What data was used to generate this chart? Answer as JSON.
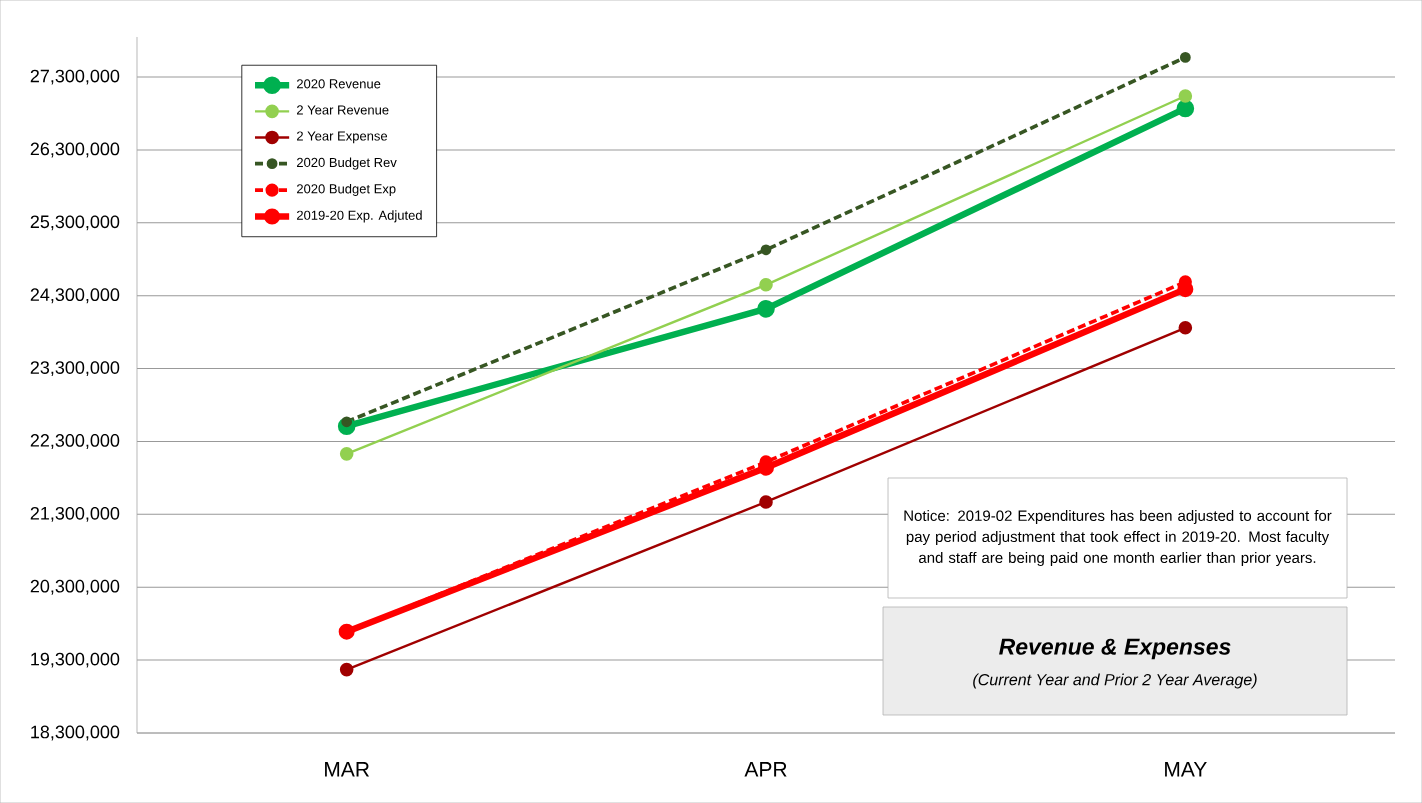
{
  "chart_data": {
    "type": "line",
    "title": "Revenue & Expenses",
    "subtitle": "(Current Year and Prior 2 Year Average)",
    "annotations": [
      "Notice: 2019-02 Expenditures has been adjusted to account for pay period adjustment that took effect in 2019-20.  Most faculty and staff are being paid one month earlier than prior years."
    ],
    "categories": [
      "MAR",
      "APR",
      "MAY"
    ],
    "series": [
      {
        "name": "2020 Revenue",
        "color": "#00b050",
        "values": [
          22510000,
          24120000,
          26870000
        ],
        "line_style": "solid"
      },
      {
        "name": "2 Year Revenue",
        "color": "#92d050",
        "values": [
          22130000,
          24450000,
          27040000
        ],
        "line_style": "solid"
      },
      {
        "name": "2 Year Expense",
        "color": "#a00000",
        "values": [
          19170000,
          21470000,
          23860000
        ],
        "line_style": "solid"
      },
      {
        "name": "2020 Budget Rev",
        "color": "#375623",
        "values": [
          22570000,
          24930000,
          27570000
        ],
        "line_style": "dashed"
      },
      {
        "name": "2020 Budget Exp",
        "color": "#ff0000",
        "values": [
          19690000,
          22020000,
          24490000
        ],
        "line_style": "dashed"
      },
      {
        "name": "2019-20 Exp. Adjuted",
        "color": "#ff0000",
        "values": [
          19690000,
          21940000,
          24390000
        ],
        "line_style": "solid"
      }
    ],
    "ylim": [
      18300000,
      27850000
    ],
    "yticks": [
      {
        "value": 18300000,
        "label": "18,300,000"
      },
      {
        "value": 19300000,
        "label": "19,300,000"
      },
      {
        "value": 20300000,
        "label": "20,300,000"
      },
      {
        "value": 21300000,
        "label": "21,300,000"
      },
      {
        "value": 22300000,
        "label": "22,300,000"
      },
      {
        "value": 23300000,
        "label": "23,300,000"
      },
      {
        "value": 24300000,
        "label": "24,300,000"
      },
      {
        "value": 25300000,
        "label": "25,300,000"
      },
      {
        "value": 26300000,
        "label": "26,300,000"
      },
      {
        "value": 27300000,
        "label": "27,300,000"
      }
    ],
    "grid": "y",
    "legend": "top left",
    "marker": "circle"
  }
}
